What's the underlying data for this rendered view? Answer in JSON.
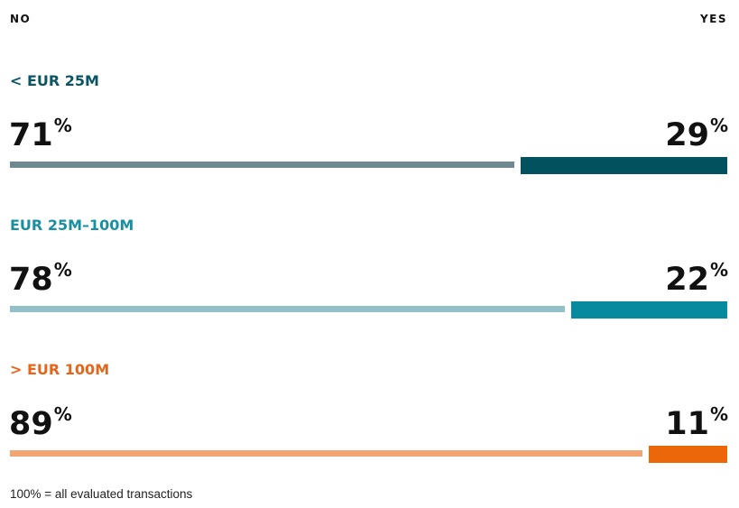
{
  "header": {
    "no_label": "NO",
    "yes_label": "YES"
  },
  "chart_data": {
    "type": "bar",
    "orientation": "horizontal-stacked",
    "series_names": [
      "NO",
      "YES"
    ],
    "groups": [
      {
        "label": "< EUR 25M",
        "no": 71,
        "yes": 29,
        "no_text": "71",
        "yes_text": "29",
        "label_color": "#0c5564",
        "no_color": "#6f8990",
        "yes_color": "#01515e"
      },
      {
        "label": "EUR 25M–100M",
        "no": 78,
        "yes": 22,
        "no_text": "78",
        "yes_text": "22",
        "label_color": "#1a8fa1",
        "no_color": "#92c0c9",
        "yes_color": "#078a9e"
      },
      {
        "label": "> EUR 100M",
        "no": 89,
        "yes": 11,
        "no_text": "89",
        "yes_text": "11",
        "label_color": "#e5661a",
        "no_color": "#f2a574",
        "yes_color": "#eb6709"
      }
    ],
    "unit": "%"
  },
  "footnote": "100% = all evaluated transactions"
}
